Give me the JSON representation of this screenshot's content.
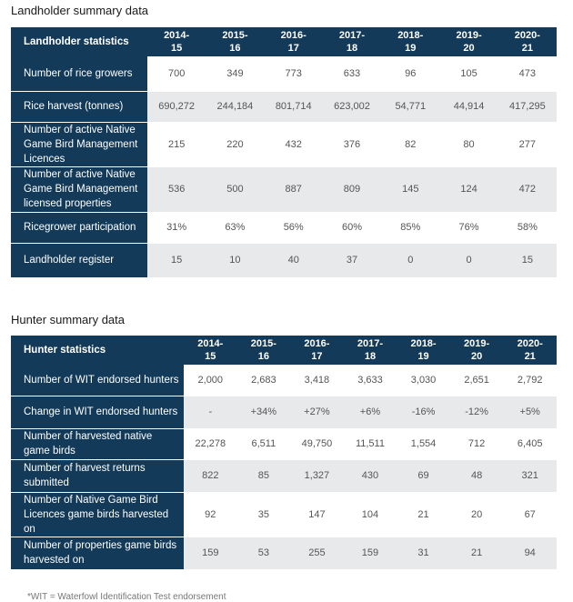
{
  "landholder": {
    "title": "Landholder summary data",
    "header": {
      "label": "Landholder statistics",
      "years": [
        "2014-\n15",
        "2015-\n16",
        "2016-\n17",
        "2017-\n18",
        "2018-\n19",
        "2019-\n20",
        "2020-\n21"
      ]
    },
    "rows": [
      {
        "label": "Number of rice growers",
        "values": [
          "700",
          "349",
          "773",
          "633",
          "96",
          "105",
          "473"
        ]
      },
      {
        "label": "Rice harvest (tonnes)",
        "values": [
          "690,272",
          "244,184",
          "801,714",
          "623,002",
          "54,771",
          "44,914",
          "417,295"
        ]
      },
      {
        "label": "Number of active Native Game Bird Management Licences",
        "values": [
          "215",
          "220",
          "432",
          "376",
          "82",
          "80",
          "277"
        ]
      },
      {
        "label": "Number of active Native Game Bird Management licensed properties",
        "values": [
          "536",
          "500",
          "887",
          "809",
          "145",
          "124",
          "472"
        ]
      },
      {
        "label": "Ricegrower participation",
        "values": [
          "31%",
          "63%",
          "56%",
          "60%",
          "85%",
          "76%",
          "58%"
        ]
      },
      {
        "label": "Landholder register",
        "values": [
          "15",
          "10",
          "40",
          "37",
          "0",
          "0",
          "15"
        ]
      }
    ]
  },
  "hunter": {
    "title": "Hunter summary data",
    "header": {
      "label": "Hunter statistics",
      "years": [
        "2014-\n15",
        "2015-\n16",
        "2016-\n17",
        "2017-\n18",
        "2018-\n19",
        "2019-\n20",
        "2020-\n21"
      ]
    },
    "rows": [
      {
        "label": "Number of WIT endorsed hunters",
        "values": [
          "2,000",
          "2,683",
          "3,418",
          "3,633",
          "3,030",
          "2,651",
          "2,792"
        ]
      },
      {
        "label": "Change in WIT endorsed hunters",
        "values": [
          "-",
          "+34%",
          "+27%",
          "+6%",
          "-16%",
          "-12%",
          "+5%"
        ]
      },
      {
        "label": "Number of harvested native game birds",
        "values": [
          "22,278",
          "6,511",
          "49,750",
          "11,511",
          "1,554",
          "712",
          "6,405"
        ]
      },
      {
        "label": "Number of harvest returns submitted",
        "values": [
          "822",
          "85",
          "1,327",
          "430",
          "69",
          "48",
          "321"
        ]
      },
      {
        "label": "Number of Native Game Bird Licences game birds harvested on",
        "values": [
          "92",
          "35",
          "147",
          "104",
          "21",
          "20",
          "67"
        ]
      },
      {
        "label": "Number of properties game birds harvested on",
        "values": [
          "159",
          "53",
          "255",
          "159",
          "31",
          "21",
          "94"
        ]
      }
    ]
  },
  "footer_text": "*WIT = Waterfowl Identification Test endorsement"
}
